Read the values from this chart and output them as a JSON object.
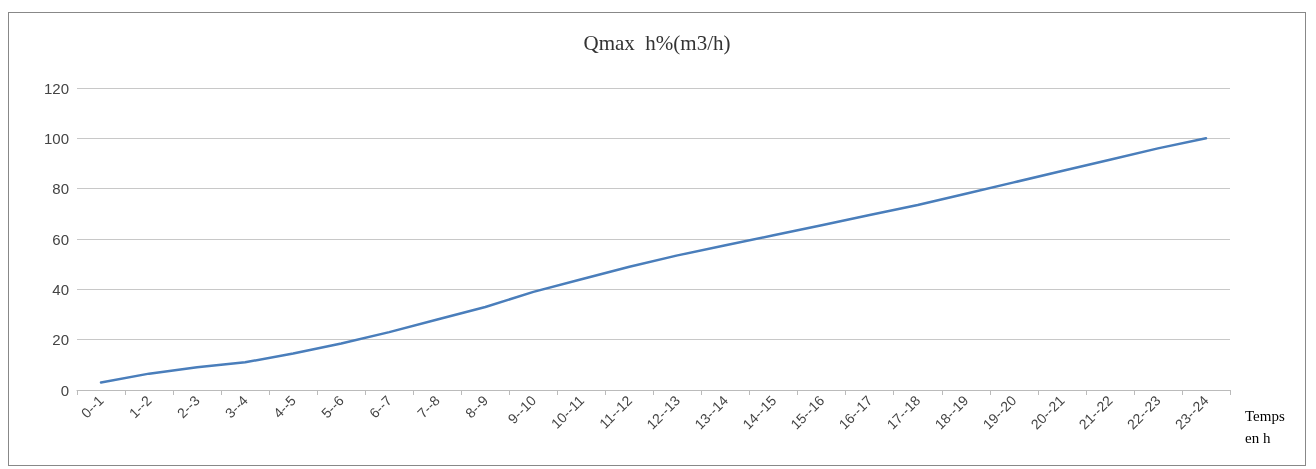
{
  "chart_data": {
    "type": "line",
    "title": "Qmax  h%(m3/h)",
    "xlabel": "Temps en h",
    "categories": [
      "0--1",
      "1--2",
      "2--3",
      "3--4",
      "4--5",
      "5--6",
      "6--7",
      "7--8",
      "8--9",
      "9--10",
      "10--11",
      "11--12",
      "12--13",
      "13--14",
      "14--15",
      "15--16",
      "16--17",
      "17--18",
      "18--19",
      "19--20",
      "20--21",
      "21--22",
      "22--23",
      "23--24"
    ],
    "series": [
      {
        "color": "#4a7ebb",
        "values": [
          3,
          6.5,
          9,
          11,
          14.5,
          18.5,
          23,
          28,
          33,
          39,
          44,
          49,
          53.5,
          57.5,
          61.5,
          65.5,
          69.5,
          73.5,
          78,
          82.5,
          87,
          91.5,
          96,
          100
        ]
      }
    ],
    "ylim": [
      0,
      120
    ],
    "yticks": [
      0,
      20,
      40,
      60,
      80,
      100,
      120
    ],
    "grid": "y",
    "marker": "none",
    "line_style": "solid"
  }
}
